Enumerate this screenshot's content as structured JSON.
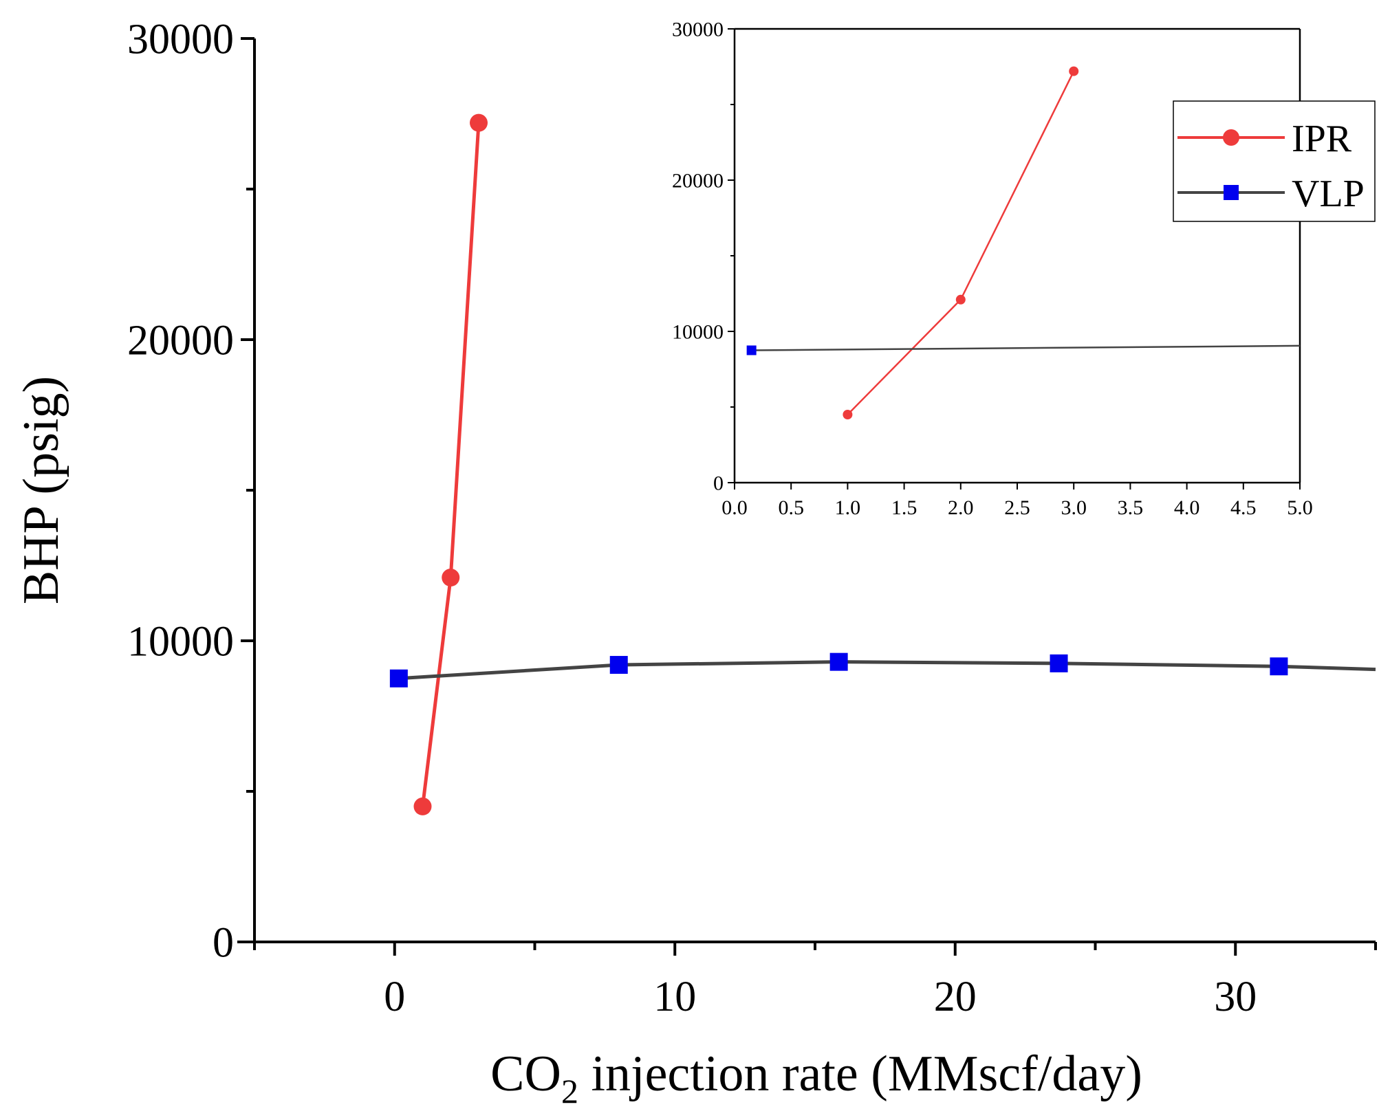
{
  "chart_data": [
    {
      "type": "line",
      "role": "main",
      "xlabel_main": "CO",
      "xlabel_sub": "2",
      "xlabel_rest": " injection rate (MMscf/day)",
      "ylabel": "BHP (psig)",
      "xlim": [
        -5,
        35
      ],
      "ylim": [
        0,
        30000
      ],
      "x_ticks": [
        0,
        10,
        20,
        30
      ],
      "x_tick_labels": [
        "0",
        "10",
        "20",
        "30"
      ],
      "y_ticks": [
        0,
        10000,
        20000,
        30000
      ],
      "y_tick_labels": [
        "0",
        "10000",
        "20000",
        "30000"
      ],
      "series": [
        {
          "name": "IPR",
          "color": "#ee3b3b",
          "marker": "circle",
          "x": [
            1,
            2,
            3
          ],
          "y": [
            4500,
            12100,
            27200
          ]
        },
        {
          "name": "VLP",
          "color": "#444444",
          "marker_color": "#0000ee",
          "marker": "square",
          "x": [
            0.15,
            8,
            15.85,
            23.7,
            31.55,
            35
          ],
          "y": [
            8750,
            9200,
            9300,
            9250,
            9150,
            9050
          ],
          "marker_x": [
            0.15,
            8,
            15.85,
            23.7,
            31.55
          ],
          "marker_y": [
            8750,
            9200,
            9300,
            9250,
            9150
          ]
        }
      ]
    },
    {
      "type": "line",
      "role": "inset",
      "xlim": [
        0,
        5
      ],
      "ylim": [
        0,
        30000
      ],
      "x_ticks": [
        0,
        0.5,
        1,
        1.5,
        2,
        2.5,
        3,
        3.5,
        4,
        4.5,
        5
      ],
      "x_tick_labels": [
        "0.0",
        "0.5",
        "1.0",
        "1.5",
        "2.0",
        "2.5",
        "3.0",
        "3.5",
        "4.0",
        "4.5",
        "5.0"
      ],
      "y_ticks": [
        0,
        10000,
        20000,
        30000
      ],
      "y_tick_labels": [
        "0",
        "10000",
        "20000",
        "30000"
      ],
      "series": [
        {
          "name": "IPR",
          "color": "#ee3b3b",
          "marker": "circle",
          "x": [
            1,
            2,
            3
          ],
          "y": [
            4500,
            12100,
            27200
          ]
        },
        {
          "name": "VLP",
          "color": "#444444",
          "marker_color": "#0000ee",
          "marker": "square",
          "x": [
            0.15,
            5
          ],
          "y": [
            8750,
            9050
          ],
          "marker_x": [
            0.15
          ],
          "marker_y": [
            8750
          ]
        }
      ],
      "legend": {
        "entries": [
          "IPR",
          "VLP"
        ],
        "position": "top-right"
      }
    }
  ]
}
